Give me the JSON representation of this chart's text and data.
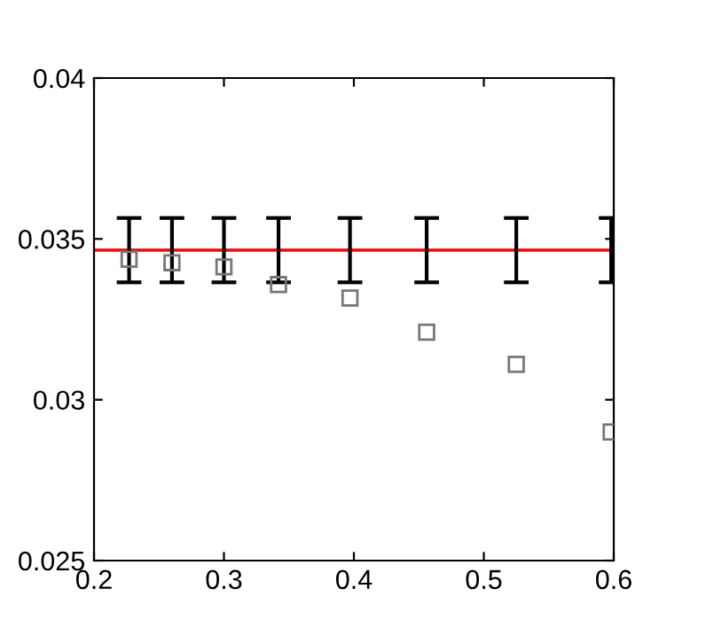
{
  "chart_data": {
    "type": "scatter",
    "x": [
      0.227,
      0.26,
      0.3,
      0.342,
      0.397,
      0.456,
      0.525,
      0.598
    ],
    "series": [
      {
        "type": "line",
        "marker": "none",
        "color": "#ff0000",
        "x": [
          0.2,
          0.227,
          0.26,
          0.3,
          0.342,
          0.397,
          0.456,
          0.525,
          0.598,
          0.6
        ],
        "values": [
          0.03465,
          0.03465,
          0.03465,
          0.03465,
          0.03465,
          0.03465,
          0.03465,
          0.03465,
          0.03465,
          0.03465
        ],
        "errors": [
          null,
          0.001,
          0.001,
          0.001,
          0.001,
          0.001,
          0.001,
          0.001,
          0.001,
          null
        ]
      },
      {
        "marker": "square",
        "color": "#777777",
        "values": [
          0.03437,
          0.03426,
          0.03413,
          0.03358,
          0.03316,
          0.0321,
          0.0311,
          0.029
        ]
      }
    ],
    "xlim": [
      0.2,
      0.6
    ],
    "ylim": [
      0.025,
      0.04
    ],
    "xticks": [
      0.2,
      0.3,
      0.4,
      0.5,
      0.6
    ],
    "yticks": [
      0.025,
      0.03,
      0.035,
      0.04
    ],
    "grid": false,
    "legend": false
  }
}
